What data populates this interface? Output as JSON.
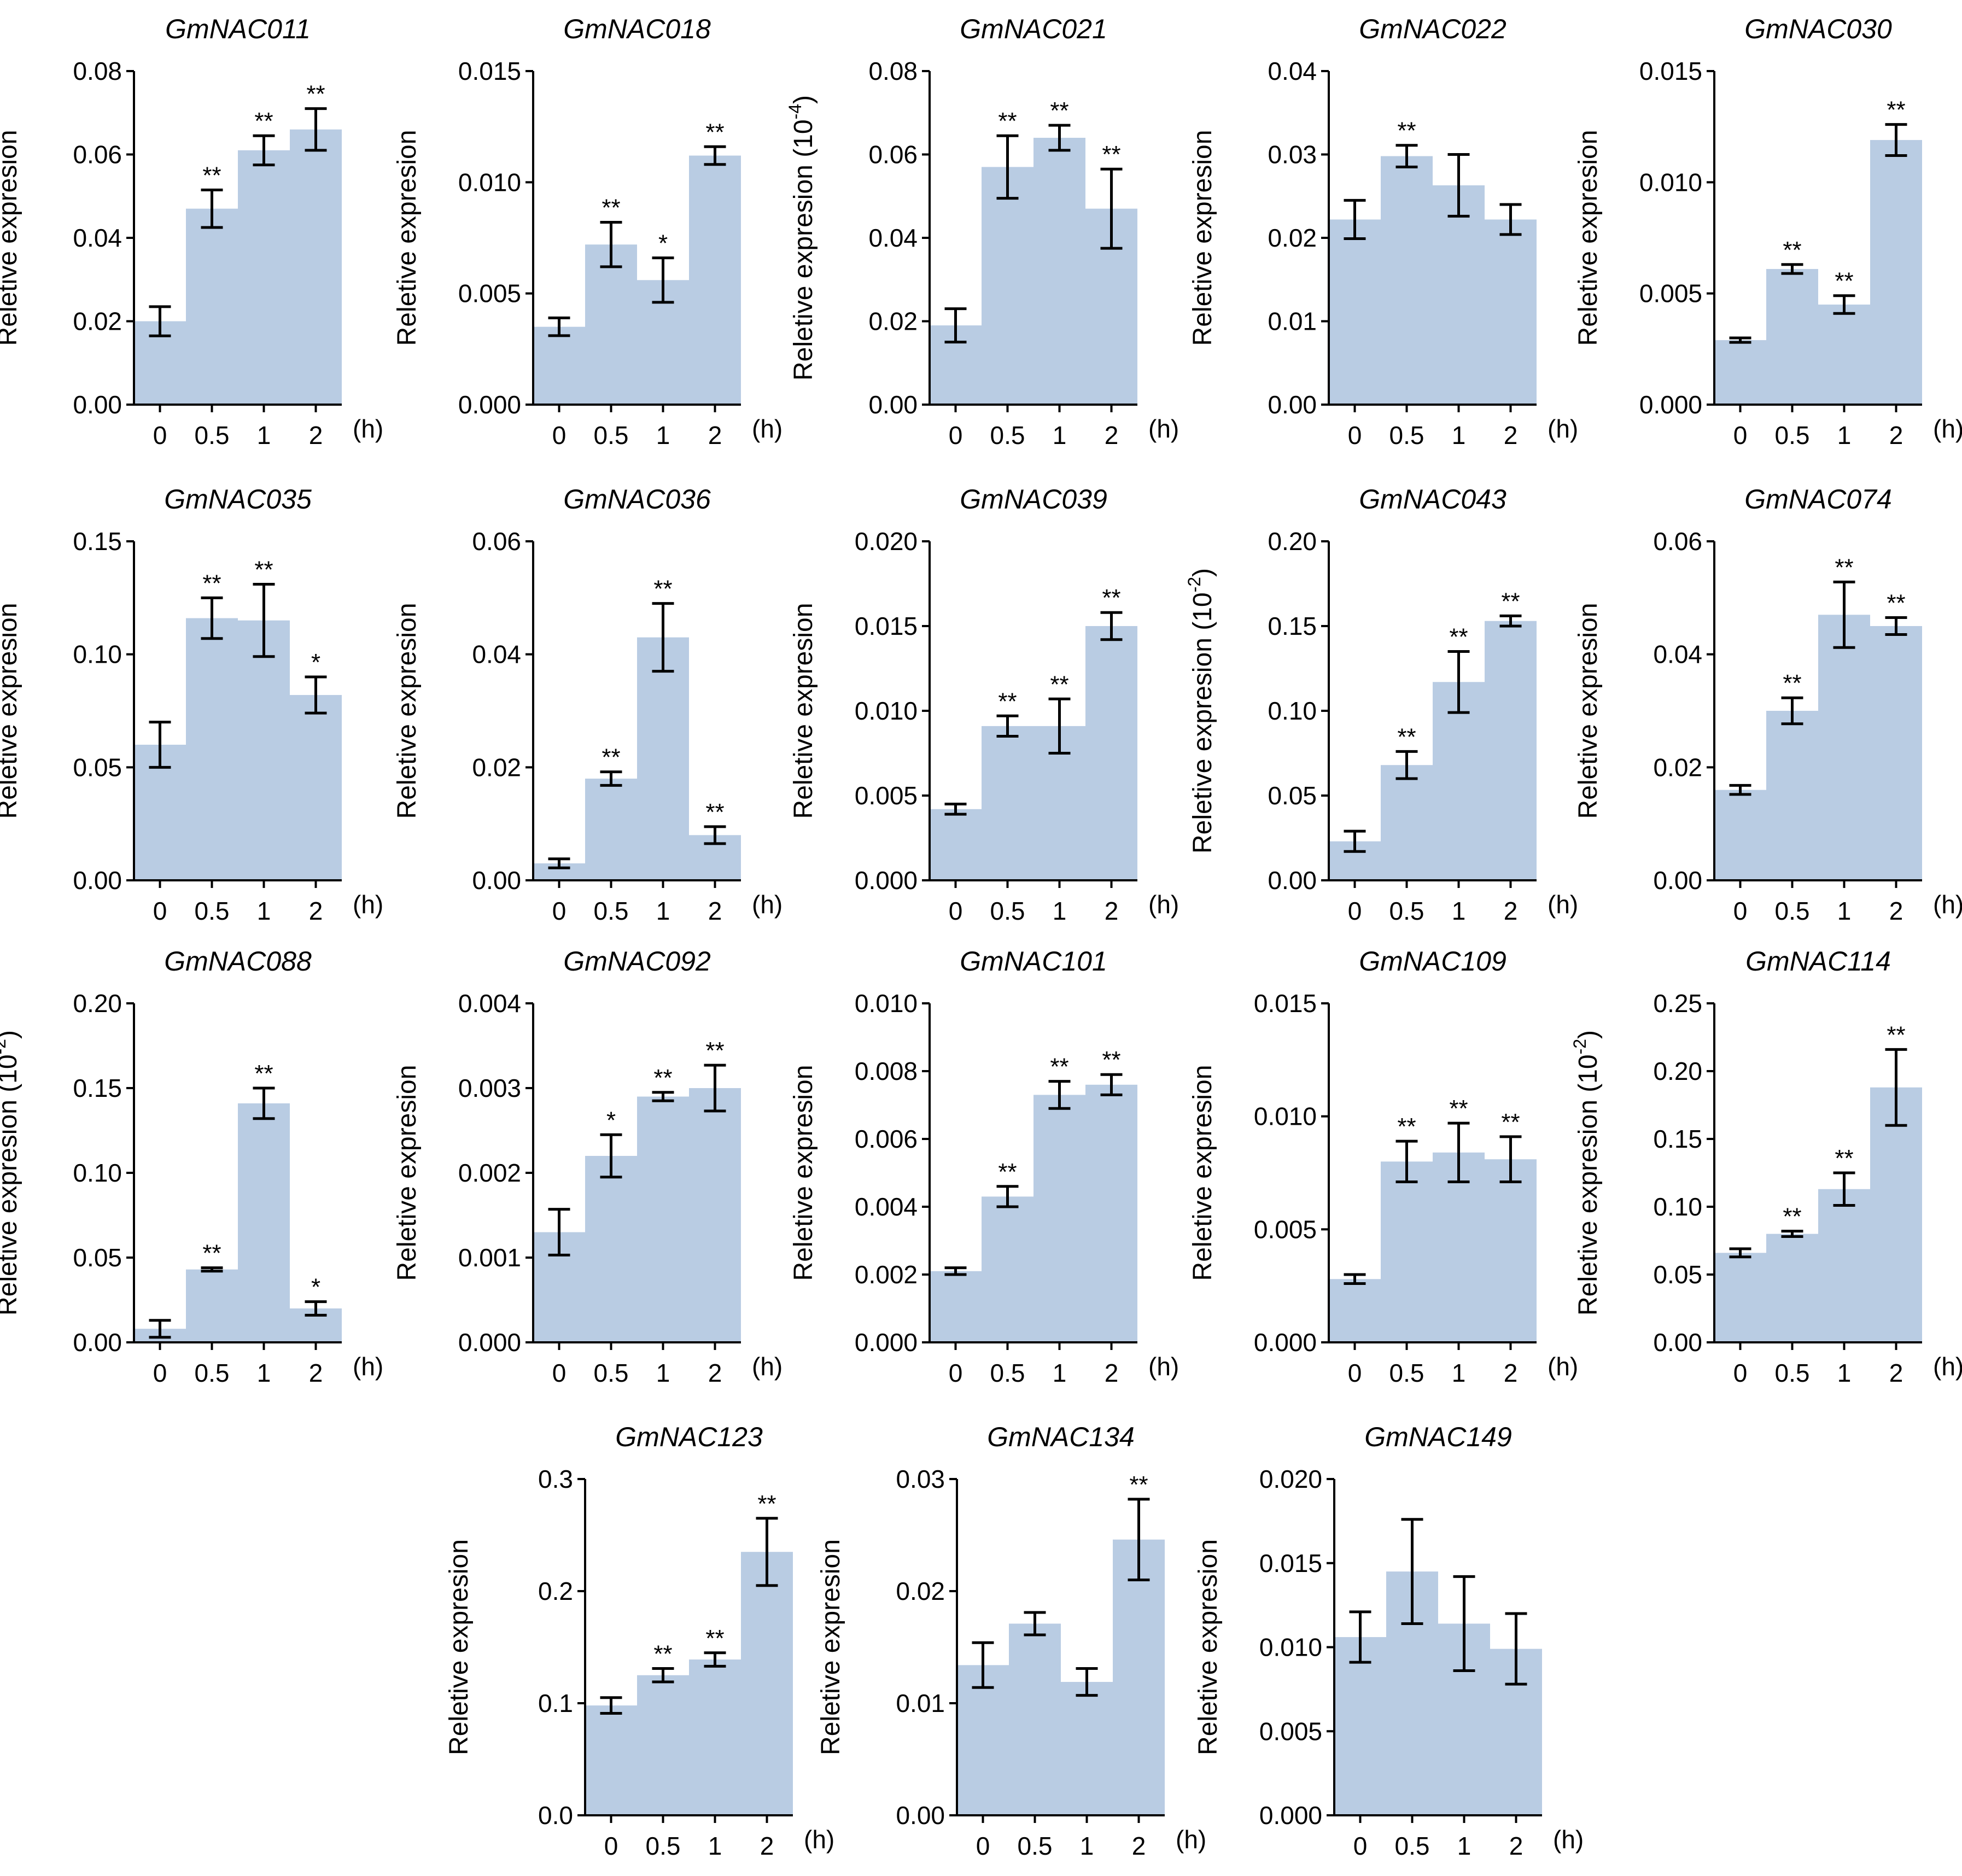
{
  "unit_label": "(h)",
  "colors": {
    "bar": "#b9cce3",
    "axis": "#000000"
  },
  "chart_data": [
    {
      "type": "bar",
      "title": "GmNAC011",
      "ylabel": "Reletive expresion",
      "ylabel_exp": "",
      "ylim": [
        0,
        0.08
      ],
      "yticks": [
        "0.00",
        "0.02",
        "0.04",
        "0.06",
        "0.08"
      ],
      "categories": [
        "0",
        "0.5",
        "1",
        "2"
      ],
      "values": [
        0.02,
        0.047,
        0.061,
        0.066
      ],
      "errors": [
        0.0035,
        0.0045,
        0.0035,
        0.005
      ],
      "sig": [
        "",
        "**",
        "**",
        "**"
      ]
    },
    {
      "type": "bar",
      "title": "GmNAC018",
      "ylabel": "Reletive expresion",
      "ylabel_exp": "",
      "ylim": [
        0,
        0.015
      ],
      "yticks": [
        "0.000",
        "0.005",
        "0.010",
        "0.015"
      ],
      "categories": [
        "0",
        "0.5",
        "1",
        "2"
      ],
      "values": [
        0.0035,
        0.0072,
        0.0056,
        0.0112
      ],
      "errors": [
        0.0004,
        0.001,
        0.001,
        0.0004
      ],
      "sig": [
        "",
        "**",
        "*",
        "**"
      ]
    },
    {
      "type": "bar",
      "title": "GmNAC021",
      "ylabel": "Reletive expresion (10",
      "ylabel_exp": "-4",
      "ylim": [
        0,
        0.08
      ],
      "yticks": [
        "0.00",
        "0.02",
        "0.04",
        "0.06",
        "0.08"
      ],
      "categories": [
        "0",
        "0.5",
        "1",
        "2"
      ],
      "values": [
        0.019,
        0.057,
        0.064,
        0.047
      ],
      "errors": [
        0.004,
        0.0075,
        0.003,
        0.0095
      ],
      "sig": [
        "",
        "**",
        "**",
        "**"
      ]
    },
    {
      "type": "bar",
      "title": "GmNAC022",
      "ylabel": "Reletive expresion",
      "ylabel_exp": "",
      "ylim": [
        0,
        0.04
      ],
      "yticks": [
        "0.00",
        "0.01",
        "0.02",
        "0.03",
        "0.04"
      ],
      "categories": [
        "0",
        "0.5",
        "1",
        "2"
      ],
      "values": [
        0.0222,
        0.0298,
        0.0263,
        0.0222
      ],
      "errors": [
        0.0023,
        0.0013,
        0.0037,
        0.0018
      ],
      "sig": [
        "",
        "**",
        "",
        ""
      ]
    },
    {
      "type": "bar",
      "title": "GmNAC030",
      "ylabel": "Reletive expresion",
      "ylabel_exp": "",
      "ylim": [
        0,
        0.015
      ],
      "yticks": [
        "0.000",
        "0.005",
        "0.010",
        "0.015"
      ],
      "categories": [
        "0",
        "0.5",
        "1",
        "2"
      ],
      "values": [
        0.0029,
        0.0061,
        0.0045,
        0.0119
      ],
      "errors": [
        0.0001,
        0.0002,
        0.0004,
        0.0007
      ],
      "sig": [
        "",
        "**",
        "**",
        "**"
      ]
    },
    {
      "type": "bar",
      "title": "GmNAC035",
      "ylabel": "Reletive expresion",
      "ylabel_exp": "",
      "ylim": [
        0,
        0.15
      ],
      "yticks": [
        "0.00",
        "0.05",
        "0.10",
        "0.15"
      ],
      "categories": [
        "0",
        "0.5",
        "1",
        "2"
      ],
      "values": [
        0.06,
        0.116,
        0.115,
        0.082
      ],
      "errors": [
        0.01,
        0.009,
        0.016,
        0.008
      ],
      "sig": [
        "",
        "**",
        "**",
        "*"
      ]
    },
    {
      "type": "bar",
      "title": "GmNAC036",
      "ylabel": "Reletive expresion",
      "ylabel_exp": "",
      "ylim": [
        0,
        0.06
      ],
      "yticks": [
        "0.00",
        "0.02",
        "0.04",
        "0.06"
      ],
      "categories": [
        "0",
        "0.5",
        "1",
        "2"
      ],
      "values": [
        0.003,
        0.018,
        0.043,
        0.008
      ],
      "errors": [
        0.0008,
        0.0012,
        0.006,
        0.0015
      ],
      "sig": [
        "",
        "**",
        "**",
        "**"
      ]
    },
    {
      "type": "bar",
      "title": "GmNAC039",
      "ylabel": "Reletive expresion",
      "ylabel_exp": "",
      "ylim": [
        0,
        0.02
      ],
      "yticks": [
        "0.000",
        "0.005",
        "0.010",
        "0.015",
        "0.020"
      ],
      "categories": [
        "0",
        "0.5",
        "1",
        "2"
      ],
      "values": [
        0.0042,
        0.0091,
        0.0091,
        0.015
      ],
      "errors": [
        0.0003,
        0.0006,
        0.0016,
        0.0008
      ],
      "sig": [
        "",
        "**",
        "**",
        "**"
      ]
    },
    {
      "type": "bar",
      "title": "GmNAC043",
      "ylabel": "Reletive expresion (10",
      "ylabel_exp": "-2",
      "ylim": [
        0,
        0.2
      ],
      "yticks": [
        "0.00",
        "0.05",
        "0.10",
        "0.15",
        "0.20"
      ],
      "categories": [
        "0",
        "0.5",
        "1",
        "2"
      ],
      "values": [
        0.023,
        0.068,
        0.117,
        0.153
      ],
      "errors": [
        0.006,
        0.008,
        0.018,
        0.003
      ],
      "sig": [
        "",
        "**",
        "**",
        "**"
      ]
    },
    {
      "type": "bar",
      "title": "GmNAC074",
      "ylabel": "Reletive expresion",
      "ylabel_exp": "",
      "ylim": [
        0,
        0.06
      ],
      "yticks": [
        "0.00",
        "0.02",
        "0.04",
        "0.06"
      ],
      "categories": [
        "0",
        "0.5",
        "1",
        "2"
      ],
      "values": [
        0.016,
        0.03,
        0.047,
        0.045
      ],
      "errors": [
        0.0008,
        0.0023,
        0.0058,
        0.0015
      ],
      "sig": [
        "",
        "**",
        "**",
        "**"
      ]
    },
    {
      "type": "bar",
      "title": "GmNAC088",
      "ylabel": "Reletive expresion (10",
      "ylabel_exp": "-2",
      "ylim": [
        0,
        0.2
      ],
      "yticks": [
        "0.00",
        "0.05",
        "0.10",
        "0.15",
        "0.20"
      ],
      "categories": [
        "0",
        "0.5",
        "1",
        "2"
      ],
      "values": [
        0.008,
        0.043,
        0.141,
        0.02
      ],
      "errors": [
        0.005,
        0.001,
        0.009,
        0.004
      ],
      "sig": [
        "",
        "**",
        "**",
        "*"
      ]
    },
    {
      "type": "bar",
      "title": "GmNAC092",
      "ylabel": "Reletive expresion",
      "ylabel_exp": "",
      "ylim": [
        0,
        0.004
      ],
      "yticks": [
        "0.000",
        "0.001",
        "0.002",
        "0.003",
        "0.004"
      ],
      "categories": [
        "0",
        "0.5",
        "1",
        "2"
      ],
      "values": [
        0.0013,
        0.0022,
        0.0029,
        0.003
      ],
      "errors": [
        0.00027,
        0.00025,
        5e-05,
        0.00027
      ],
      "sig": [
        "",
        "*",
        "**",
        "**"
      ]
    },
    {
      "type": "bar",
      "title": "GmNAC101",
      "ylabel": "Reletive expresion",
      "ylabel_exp": "",
      "ylim": [
        0,
        0.01
      ],
      "yticks": [
        "0.000",
        "0.002",
        "0.004",
        "0.006",
        "0.008",
        "0.010"
      ],
      "categories": [
        "0",
        "0.5",
        "1",
        "2"
      ],
      "values": [
        0.0021,
        0.0043,
        0.0073,
        0.0076
      ],
      "errors": [
        0.0001,
        0.0003,
        0.0004,
        0.0003
      ],
      "sig": [
        "",
        "**",
        "**",
        "**"
      ]
    },
    {
      "type": "bar",
      "title": "GmNAC109",
      "ylabel": "Reletive expresion",
      "ylabel_exp": "",
      "ylim": [
        0,
        0.015
      ],
      "yticks": [
        "0.000",
        "0.005",
        "0.010",
        "0.015"
      ],
      "categories": [
        "0",
        "0.5",
        "1",
        "2"
      ],
      "values": [
        0.0028,
        0.008,
        0.0084,
        0.0081
      ],
      "errors": [
        0.0002,
        0.0009,
        0.0013,
        0.001
      ],
      "sig": [
        "",
        "**",
        "**",
        "**"
      ]
    },
    {
      "type": "bar",
      "title": "GmNAC114",
      "ylabel": "Reletive expresion (10",
      "ylabel_exp": "-2",
      "ylim": [
        0,
        0.25
      ],
      "yticks": [
        "0.00",
        "0.05",
        "0.10",
        "0.15",
        "0.20",
        "0.25"
      ],
      "categories": [
        "0",
        "0.5",
        "1",
        "2"
      ],
      "values": [
        0.066,
        0.08,
        0.113,
        0.188
      ],
      "errors": [
        0.003,
        0.002,
        0.012,
        0.028
      ],
      "sig": [
        "",
        "**",
        "**",
        "**"
      ]
    },
    {
      "type": "bar",
      "title": "GmNAC123",
      "ylabel": "Reletive expresion",
      "ylabel_exp": "",
      "ylim": [
        0,
        0.3
      ],
      "yticks": [
        "0.0",
        "0.1",
        "0.2",
        "0.3"
      ],
      "categories": [
        "0",
        "0.5",
        "1",
        "2"
      ],
      "values": [
        0.098,
        0.125,
        0.139,
        0.235
      ],
      "errors": [
        0.007,
        0.006,
        0.006,
        0.03
      ],
      "sig": [
        "",
        "**",
        "**",
        "**"
      ]
    },
    {
      "type": "bar",
      "title": "GmNAC134",
      "ylabel": "Reletive expresion",
      "ylabel_exp": "",
      "ylim": [
        0,
        0.03
      ],
      "yticks": [
        "0.00",
        "0.01",
        "0.02",
        "0.03"
      ],
      "categories": [
        "0",
        "0.5",
        "1",
        "2"
      ],
      "values": [
        0.0134,
        0.0171,
        0.0119,
        0.0246
      ],
      "errors": [
        0.002,
        0.001,
        0.0012,
        0.0036
      ],
      "sig": [
        "",
        "",
        "",
        "**"
      ]
    },
    {
      "type": "bar",
      "title": "GmNAC149",
      "ylabel": "Reletive expresion",
      "ylabel_exp": "",
      "ylim": [
        0,
        0.02
      ],
      "yticks": [
        "0.000",
        "0.005",
        "0.010",
        "0.015",
        "0.020"
      ],
      "categories": [
        "0",
        "0.5",
        "1",
        "2"
      ],
      "values": [
        0.0106,
        0.0145,
        0.0114,
        0.0099
      ],
      "errors": [
        0.0015,
        0.0031,
        0.0028,
        0.0021
      ],
      "sig": [
        "",
        "",
        "",
        ""
      ]
    }
  ]
}
